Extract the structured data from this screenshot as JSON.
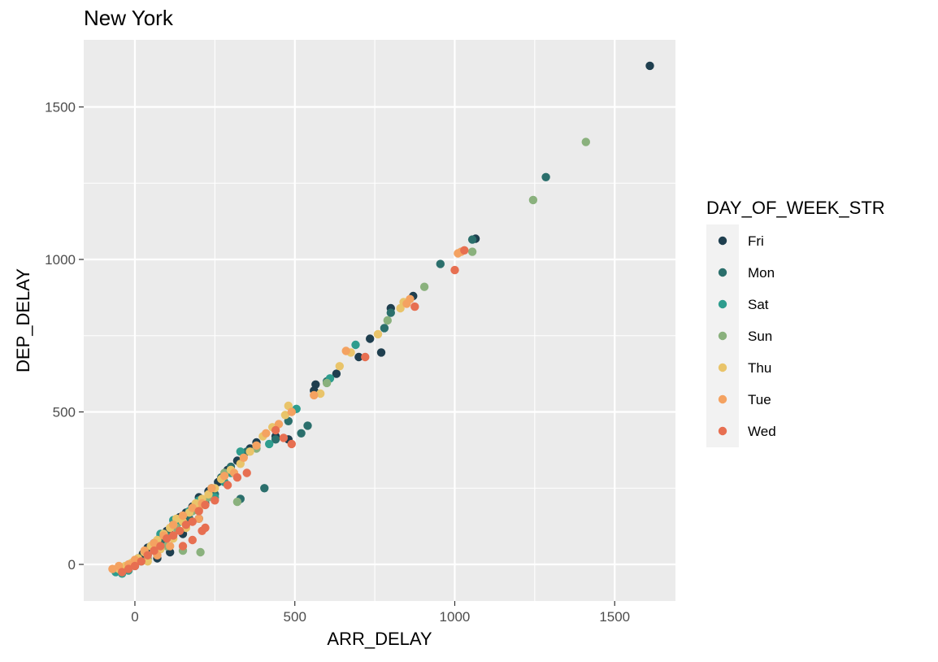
{
  "chart_data": {
    "type": "scatter",
    "title": "New York",
    "xlabel": "ARR_DELAY",
    "ylabel": "DEP_DELAY",
    "xlim": [
      -160,
      1690
    ],
    "ylim": [
      -120,
      1720
    ],
    "xticks": [
      0,
      500,
      1000,
      1500
    ],
    "yticks": [
      0,
      500,
      1000,
      1500
    ],
    "grid": true,
    "background": "#ebebeb",
    "legend": {
      "title": "DAY_OF_WEEK_STR",
      "placement": "right"
    },
    "series": [
      {
        "name": "Fri",
        "color": "#1f3f4f",
        "points": [
          [
            1610,
            1635
          ],
          [
            1065,
            1068
          ],
          [
            870,
            880
          ],
          [
            800,
            840
          ],
          [
            770,
            695
          ],
          [
            735,
            740
          ],
          [
            700,
            680
          ],
          [
            630,
            625
          ],
          [
            565,
            590
          ],
          [
            560,
            570
          ],
          [
            480,
            410
          ],
          [
            440,
            420
          ],
          [
            380,
            400
          ],
          [
            360,
            380
          ],
          [
            320,
            340
          ],
          [
            290,
            310
          ],
          [
            260,
            270
          ],
          [
            230,
            240
          ],
          [
            200,
            220
          ],
          [
            180,
            190
          ],
          [
            160,
            170
          ],
          [
            140,
            155
          ],
          [
            120,
            130
          ],
          [
            100,
            110
          ],
          [
            80,
            90
          ],
          [
            60,
            70
          ],
          [
            40,
            55
          ],
          [
            25,
            35
          ],
          [
            10,
            15
          ],
          [
            -20,
            -10
          ],
          [
            -40,
            -20
          ],
          [
            150,
            100
          ],
          [
            200,
            150
          ],
          [
            110,
            40
          ],
          [
            70,
            20
          ]
        ]
      },
      {
        "name": "Mon",
        "color": "#2b6f6c",
        "points": [
          [
            1285,
            1270
          ],
          [
            1055,
            1065
          ],
          [
            955,
            985
          ],
          [
            800,
            825
          ],
          [
            780,
            775
          ],
          [
            540,
            455
          ],
          [
            520,
            430
          ],
          [
            405,
            250
          ],
          [
            330,
            215
          ],
          [
            350,
            370
          ],
          [
            300,
            320
          ],
          [
            270,
            285
          ],
          [
            250,
            230
          ],
          [
            220,
            200
          ],
          [
            190,
            180
          ],
          [
            170,
            150
          ],
          [
            150,
            160
          ],
          [
            130,
            120
          ],
          [
            110,
            100
          ],
          [
            90,
            80
          ],
          [
            70,
            75
          ],
          [
            50,
            60
          ],
          [
            30,
            40
          ],
          [
            10,
            20
          ],
          [
            -10,
            0
          ],
          [
            -30,
            -15
          ],
          [
            -50,
            -10
          ],
          [
            600,
            600
          ],
          [
            480,
            470
          ],
          [
            440,
            410
          ]
        ]
      },
      {
        "name": "Sat",
        "color": "#2e9d8e",
        "points": [
          [
            690,
            720
          ],
          [
            610,
            610
          ],
          [
            505,
            510
          ],
          [
            420,
            395
          ],
          [
            330,
            370
          ],
          [
            300,
            300
          ],
          [
            280,
            270
          ],
          [
            240,
            250
          ],
          [
            200,
            210
          ],
          [
            170,
            175
          ],
          [
            140,
            140
          ],
          [
            120,
            145
          ],
          [
            100,
            90
          ],
          [
            80,
            100
          ],
          [
            60,
            55
          ],
          [
            40,
            30
          ],
          [
            20,
            10
          ],
          [
            0,
            -5
          ],
          [
            -20,
            -20
          ],
          [
            -40,
            -30
          ],
          [
            -60,
            -25
          ],
          [
            250,
            220
          ]
        ]
      },
      {
        "name": "Sun",
        "color": "#8ab17d",
        "points": [
          [
            1410,
            1385
          ],
          [
            1245,
            1195
          ],
          [
            1055,
            1025
          ],
          [
            905,
            910
          ],
          [
            790,
            800
          ],
          [
            600,
            595
          ],
          [
            320,
            205
          ],
          [
            205,
            40
          ],
          [
            150,
            45
          ],
          [
            380,
            380
          ],
          [
            280,
            300
          ],
          [
            230,
            220
          ],
          [
            180,
            175
          ],
          [
            130,
            120
          ],
          [
            100,
            60
          ],
          [
            70,
            50
          ],
          [
            40,
            20
          ],
          [
            -30,
            -10
          ]
        ]
      },
      {
        "name": "Thu",
        "color": "#e9c46a",
        "points": [
          [
            840,
            860
          ],
          [
            830,
            840
          ],
          [
            760,
            755
          ],
          [
            675,
            695
          ],
          [
            640,
            650
          ],
          [
            580,
            560
          ],
          [
            480,
            520
          ],
          [
            470,
            490
          ],
          [
            430,
            450
          ],
          [
            400,
            420
          ],
          [
            360,
            370
          ],
          [
            330,
            330
          ],
          [
            300,
            310
          ],
          [
            270,
            280
          ],
          [
            250,
            250
          ],
          [
            230,
            230
          ],
          [
            210,
            215
          ],
          [
            190,
            200
          ],
          [
            170,
            170
          ],
          [
            150,
            140
          ],
          [
            130,
            150
          ],
          [
            110,
            120
          ],
          [
            90,
            100
          ],
          [
            70,
            80
          ],
          [
            50,
            60
          ],
          [
            30,
            40
          ],
          [
            10,
            20
          ],
          [
            -10,
            5
          ],
          [
            -30,
            -5
          ],
          [
            -50,
            -15
          ],
          [
            200,
            180
          ],
          [
            160,
            120
          ],
          [
            120,
            85
          ],
          [
            80,
            50
          ],
          [
            40,
            10
          ]
        ]
      },
      {
        "name": "Tue",
        "color": "#f4a261",
        "points": [
          [
            1010,
            1020
          ],
          [
            1020,
            1025
          ],
          [
            860,
            870
          ],
          [
            850,
            855
          ],
          [
            660,
            700
          ],
          [
            560,
            555
          ],
          [
            490,
            500
          ],
          [
            450,
            460
          ],
          [
            410,
            430
          ],
          [
            380,
            390
          ],
          [
            340,
            350
          ],
          [
            310,
            300
          ],
          [
            280,
            290
          ],
          [
            240,
            250
          ],
          [
            210,
            200
          ],
          [
            180,
            185
          ],
          [
            150,
            160
          ],
          [
            120,
            130
          ],
          [
            90,
            95
          ],
          [
            60,
            70
          ],
          [
            30,
            45
          ],
          [
            0,
            15
          ],
          [
            -20,
            0
          ],
          [
            -50,
            -5
          ],
          [
            -70,
            -15
          ],
          [
            110,
            60
          ],
          [
            70,
            30
          ],
          [
            200,
            150
          ]
        ]
      },
      {
        "name": "Wed",
        "color": "#e76f51",
        "points": [
          [
            1030,
            1030
          ],
          [
            1000,
            965
          ],
          [
            875,
            845
          ],
          [
            720,
            680
          ],
          [
            490,
            395
          ],
          [
            465,
            415
          ],
          [
            440,
            440
          ],
          [
            350,
            300
          ],
          [
            320,
            285
          ],
          [
            290,
            260
          ],
          [
            250,
            210
          ],
          [
            220,
            195
          ],
          [
            200,
            175
          ],
          [
            180,
            140
          ],
          [
            160,
            130
          ],
          [
            140,
            110
          ],
          [
            120,
            95
          ],
          [
            100,
            85
          ],
          [
            80,
            60
          ],
          [
            60,
            45
          ],
          [
            40,
            30
          ],
          [
            20,
            10
          ],
          [
            0,
            -5
          ],
          [
            -20,
            -15
          ],
          [
            -40,
            -25
          ],
          [
            210,
            110
          ],
          [
            180,
            80
          ],
          [
            150,
            60
          ],
          [
            220,
            120
          ]
        ]
      }
    ]
  }
}
